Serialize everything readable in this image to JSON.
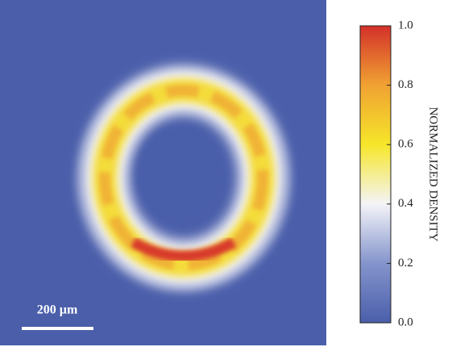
{
  "chart_data": {
    "type": "heatmap",
    "scale_bar": "200 µm",
    "colorbar": {
      "label": "NORMALIZED DENSITY",
      "lim": [
        0,
        1
      ],
      "ticks": [
        {
          "value": 0,
          "label": "0.0"
        },
        0.2,
        0.4,
        0.6,
        0.8,
        {
          "value": 1,
          "label": "1.0"
        }
      ],
      "colors": [
        "#4a5eaa",
        "#8494cc",
        "#f4f4f8",
        "#f6e62a",
        "#f0a232",
        "#d4302a"
      ]
    }
  }
}
